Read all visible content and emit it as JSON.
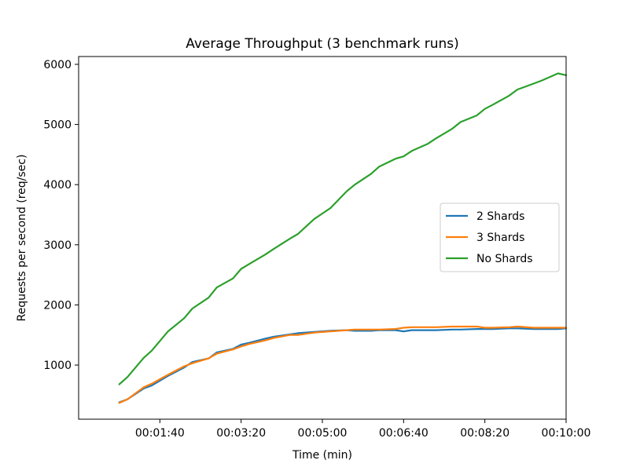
{
  "chart_data": {
    "type": "line",
    "title": "Average Throughput (3 benchmark runs)",
    "xlabel": "Time (min)",
    "ylabel": "Requests per second (req/sec)",
    "xlim": [
      "00:00:00",
      "00:10:00"
    ],
    "ylim": [
      100,
      6130
    ],
    "x_ticks": [
      "00:01:40",
      "00:03:20",
      "00:05:00",
      "00:06:40",
      "00:08:20",
      "00:10:00"
    ],
    "y_ticks": [
      1000,
      2000,
      3000,
      4000,
      5000,
      6000
    ],
    "grid": false,
    "legend_position": "center-right",
    "x": [
      "00:00:50",
      "00:01:00",
      "00:01:20",
      "00:01:30",
      "00:01:50",
      "00:02:10",
      "00:02:20",
      "00:02:40",
      "00:02:50",
      "00:03:10",
      "00:03:20",
      "00:03:30",
      "00:03:50",
      "00:04:00",
      "00:04:20",
      "00:04:30",
      "00:04:50",
      "00:05:00",
      "00:05:10",
      "00:05:30",
      "00:05:40",
      "00:06:00",
      "00:06:10",
      "00:06:30",
      "00:06:40",
      "00:06:50",
      "00:07:10",
      "00:07:20",
      "00:07:40",
      "00:07:50",
      "00:08:10",
      "00:08:20",
      "00:08:30",
      "00:08:50",
      "00:09:00",
      "00:09:20",
      "00:09:30",
      "00:09:50",
      "00:10:00"
    ],
    "series": [
      {
        "name": "2 Shards",
        "color": "#1f77b4",
        "values": [
          380,
          430,
          610,
          660,
          820,
          960,
          1050,
          1110,
          1210,
          1270,
          1340,
          1370,
          1440,
          1470,
          1510,
          1530,
          1550,
          1560,
          1570,
          1580,
          1570,
          1570,
          1580,
          1580,
          1560,
          1580,
          1580,
          1580,
          1590,
          1590,
          1600,
          1600,
          1600,
          1610,
          1610,
          1600,
          1600,
          1600,
          1610
        ]
      },
      {
        "name": "3 Shards",
        "color": "#ff7f0e",
        "values": [
          370,
          430,
          630,
          690,
          840,
          980,
          1030,
          1110,
          1190,
          1260,
          1310,
          1350,
          1410,
          1450,
          1500,
          1500,
          1540,
          1550,
          1560,
          1580,
          1590,
          1590,
          1590,
          1600,
          1620,
          1630,
          1630,
          1630,
          1640,
          1640,
          1640,
          1620,
          1620,
          1630,
          1640,
          1620,
          1620,
          1620,
          1620
        ]
      },
      {
        "name": "No Shards",
        "color": "#2ca02c",
        "values": [
          680,
          800,
          1120,
          1240,
          1560,
          1780,
          1940,
          2120,
          2290,
          2440,
          2600,
          2680,
          2840,
          2930,
          3100,
          3180,
          3430,
          3520,
          3610,
          3890,
          4000,
          4180,
          4300,
          4430,
          4470,
          4560,
          4680,
          4770,
          4930,
          5040,
          5150,
          5260,
          5330,
          5480,
          5580,
          5680,
          5730,
          5850,
          5820
        ]
      }
    ]
  }
}
